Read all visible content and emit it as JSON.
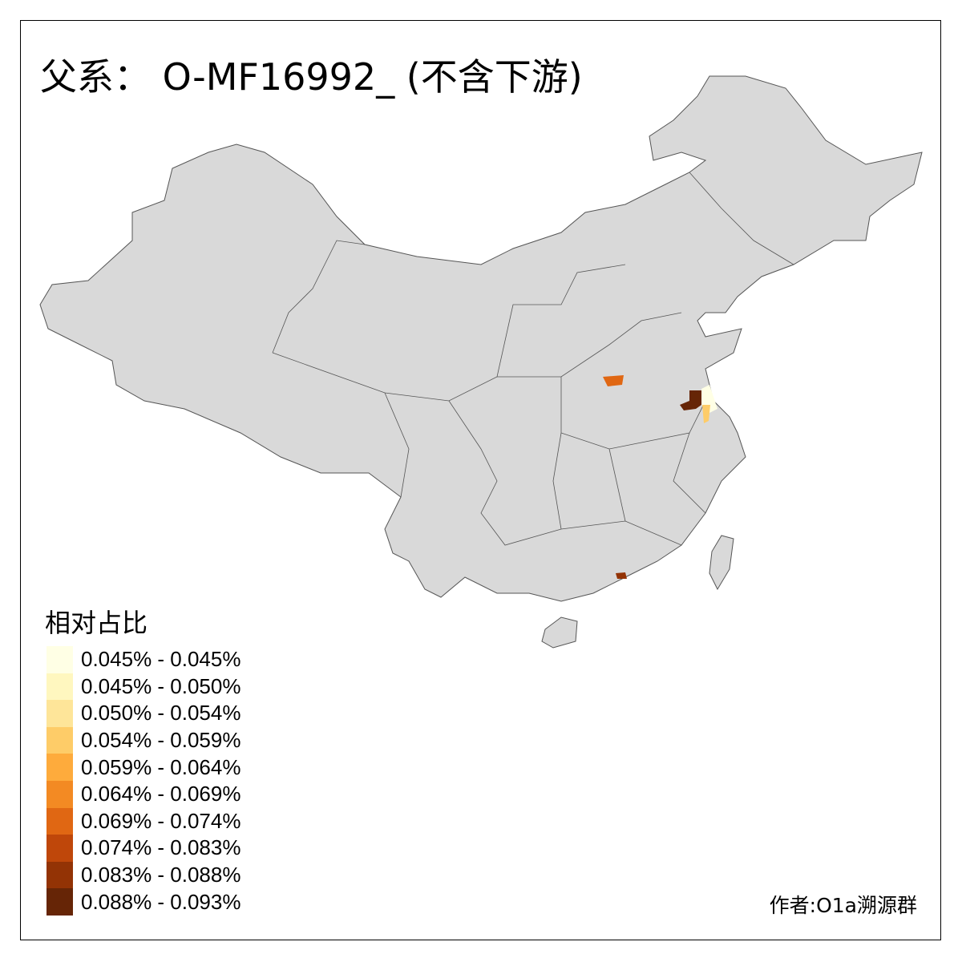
{
  "title": "父系： O-MF16992_ (不含下游)",
  "legend": {
    "title": "相对占比",
    "items": [
      {
        "label": "0.045% - 0.045%",
        "color": "#FFFFE5"
      },
      {
        "label": "0.045% - 0.050%",
        "color": "#FFF7BF"
      },
      {
        "label": "0.050% - 0.054%",
        "color": "#FEE599"
      },
      {
        "label": "0.054% - 0.059%",
        "color": "#FECC68"
      },
      {
        "label": "0.059% - 0.064%",
        "color": "#FEAB3C"
      },
      {
        "label": "0.064% - 0.069%",
        "color": "#F38A23"
      },
      {
        "label": "0.069% - 0.074%",
        "color": "#E06713"
      },
      {
        "label": "0.074% - 0.083%",
        "color": "#BF470A"
      },
      {
        "label": "0.083% - 0.088%",
        "color": "#933305"
      },
      {
        "label": "0.088% - 0.093%",
        "color": "#662506"
      }
    ]
  },
  "author": "作者:O1a溯源群",
  "colors": {
    "base_region": "#D9D9D9",
    "border": "#555555"
  }
}
